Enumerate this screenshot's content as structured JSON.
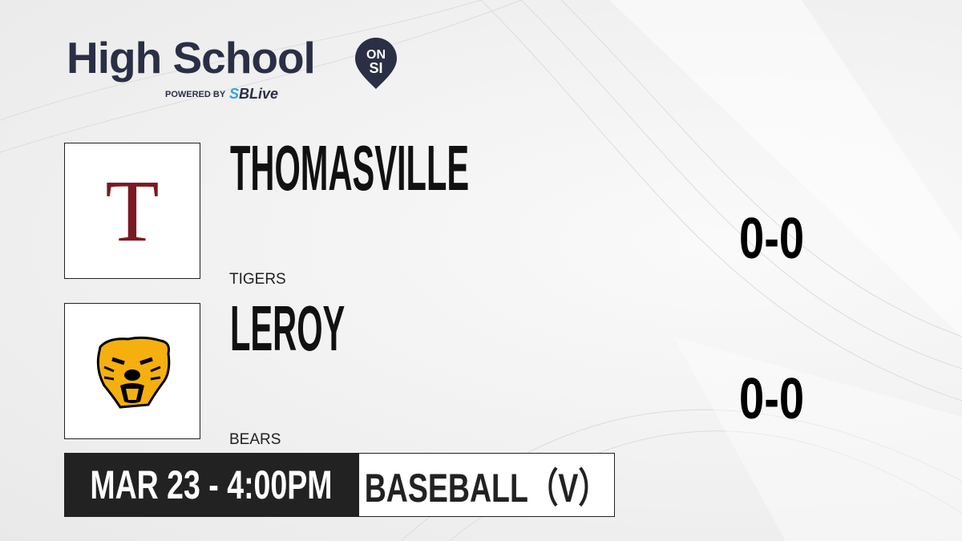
{
  "brand": {
    "title": "High School",
    "badge_top": "ON",
    "badge_bottom": "SI",
    "powered_by": "POWERED BY",
    "partner_prefix": "S",
    "partner": "BLive",
    "colors": {
      "navy": "#2a2f45",
      "partner_accent": "#2aa7e0"
    }
  },
  "teams": [
    {
      "name": "THOMASVILLE",
      "mascot": "TIGERS",
      "score": "0-0",
      "logo": "letter-T-logo",
      "logo_letter": "T",
      "logo_color": "#7a1a22"
    },
    {
      "name": "LEROY",
      "mascot": "BEARS",
      "score": "0-0",
      "logo": "bear-head-icon",
      "logo_color": "#f5b00f"
    }
  ],
  "game": {
    "datetime": "MAR 23 - 4:00PM",
    "sport": "BASEBALL（V）"
  }
}
